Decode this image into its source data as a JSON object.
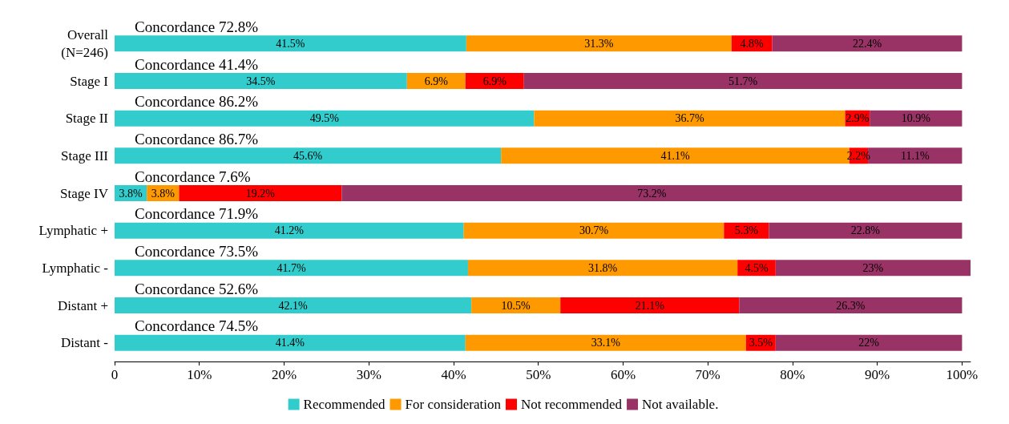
{
  "chart_data": {
    "type": "bar",
    "orientation": "horizontal",
    "stacked": true,
    "categories": [
      "Overall\n(N=246)",
      "Stage I",
      "Stage II",
      "Stage III",
      "Stage IV",
      "Lymphatic +",
      "Lymphatic -",
      "Distant +",
      "Distant -"
    ],
    "series": [
      {
        "name": "Recommended",
        "color": "#33cccc",
        "values": [
          41.5,
          34.5,
          49.5,
          45.6,
          3.8,
          41.2,
          41.7,
          42.1,
          41.4
        ],
        "value_labels": [
          "41.5%",
          "34.5%",
          "49.5%",
          "45.6%",
          "3.8%",
          "41.2%",
          "41.7%",
          "42.1%",
          "41.4%"
        ]
      },
      {
        "name": "For consideration",
        "color": "#ff9900",
        "values": [
          31.3,
          6.9,
          36.7,
          41.1,
          3.8,
          30.7,
          31.8,
          10.5,
          33.1
        ],
        "value_labels": [
          "31.3%",
          "6.9%",
          "36.7%",
          "41.1%",
          "3.8%",
          "30.7%",
          "31.8%",
          "10.5%",
          "33.1%"
        ]
      },
      {
        "name": "Not recommended",
        "color": "#ff0000",
        "values": [
          4.8,
          6.9,
          2.9,
          2.2,
          19.2,
          5.3,
          4.5,
          21.1,
          3.5
        ],
        "value_labels": [
          "4.8%",
          "6.9%",
          "2.9%",
          "2.2%",
          "19.2%",
          "5.3%",
          "4.5%",
          "21.1%",
          "3.5%"
        ]
      },
      {
        "name": "Not available.",
        "color": "#993366",
        "values": [
          22.4,
          51.7,
          10.9,
          11.1,
          73.2,
          22.8,
          23,
          26.3,
          22
        ],
        "value_labels": [
          "22.4%",
          "51.7%",
          "10.9%",
          "11.1%",
          "73.2%",
          "22.8%",
          "23%",
          "26.3%",
          "22%"
        ]
      }
    ],
    "xlim": [
      0,
      101
    ],
    "xticks": [
      {
        "value": 0,
        "label": "0"
      },
      {
        "value": 10,
        "label": "10%"
      },
      {
        "value": 20,
        "label": "20%"
      },
      {
        "value": 30,
        "label": "30%"
      },
      {
        "value": 40,
        "label": "40%"
      },
      {
        "value": 50,
        "label": "50%"
      },
      {
        "value": 60,
        "label": "60%"
      },
      {
        "value": 70,
        "label": "70%"
      },
      {
        "value": 80,
        "label": "80%"
      },
      {
        "value": 90,
        "label": "90%"
      },
      {
        "value": 100,
        "label": "100%"
      }
    ],
    "annotations": [
      "Concordance 72.8%",
      "Concordance 41.4%",
      "Concordance 86.2%",
      "Concordance 86.7%",
      "Concordance 7.6%",
      "Concordance 71.9%",
      "Concordance 73.5%",
      "Concordance 52.6%",
      "Concordance 74.5%"
    ],
    "grid": false,
    "legend": "bottom"
  }
}
